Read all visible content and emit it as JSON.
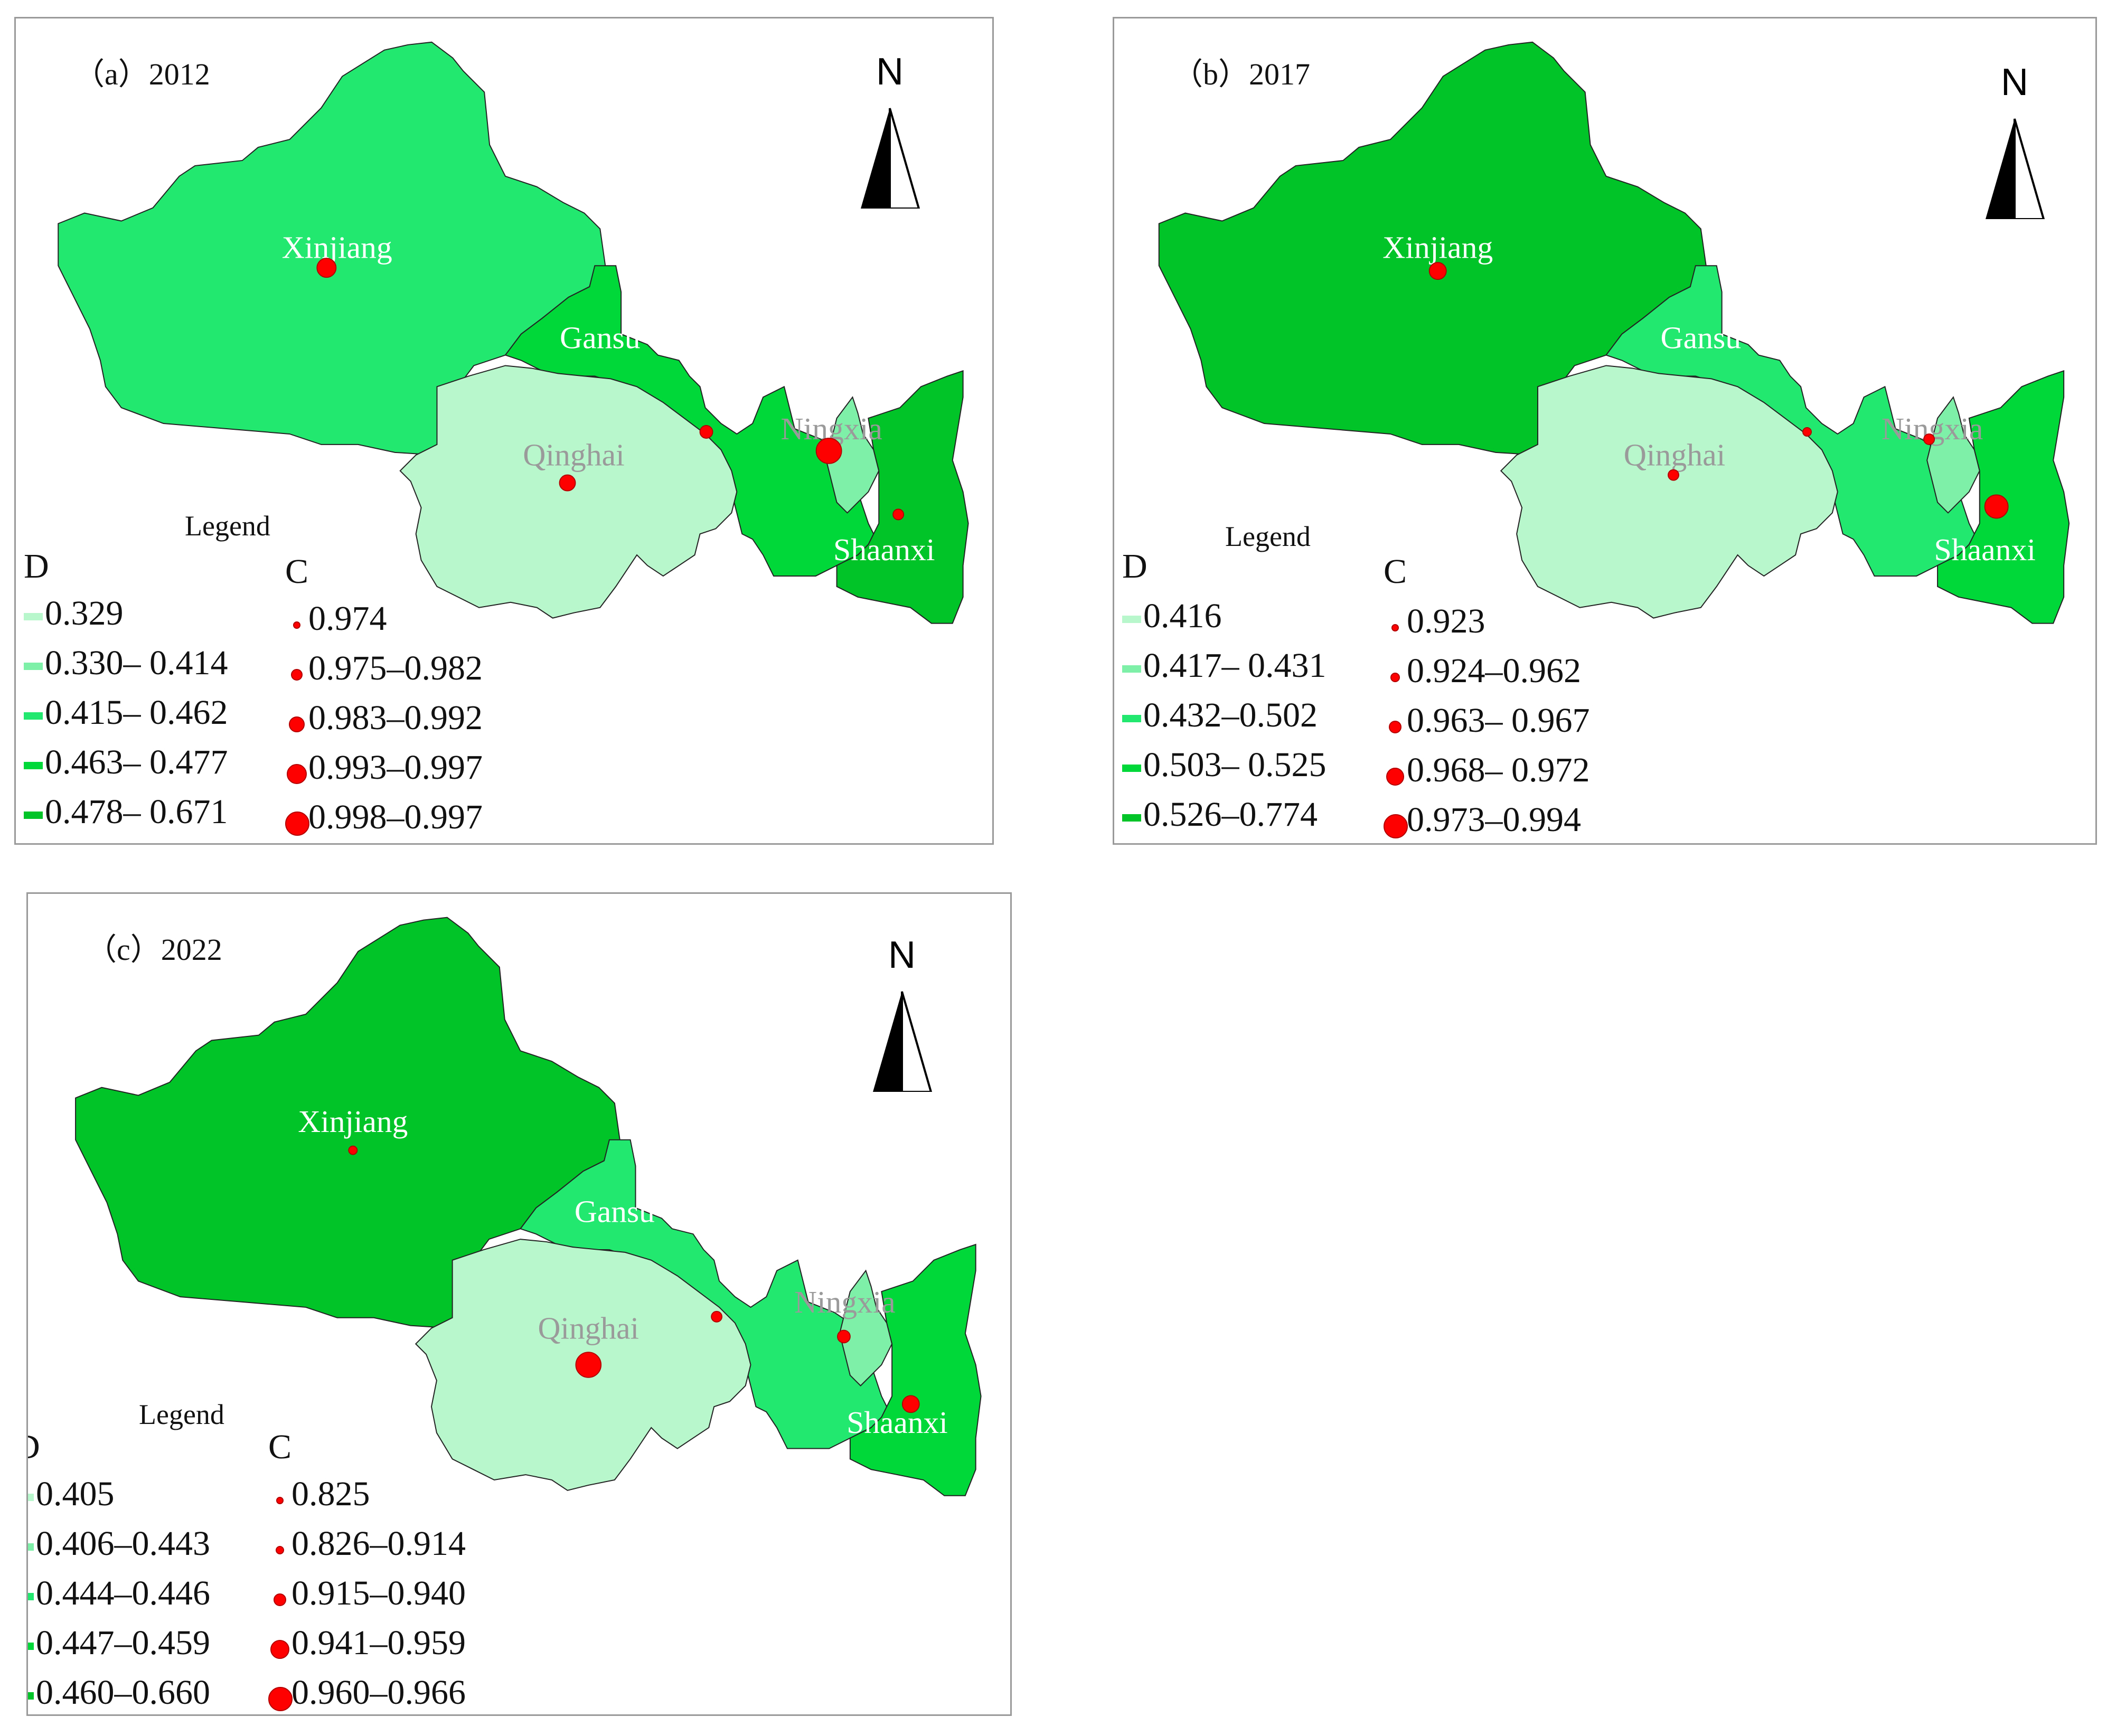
{
  "colors": {
    "class1": "#b8f7cc",
    "class2": "#7ef0a8",
    "class3": "#22e870",
    "class4": "#00d83a",
    "class5": "#00c428",
    "dot": "#ff0000",
    "label_white": "#ffffff",
    "label_grey": "#9a9a9a"
  },
  "north_label": "N",
  "panels": [
    {
      "title": "（a）2012",
      "regions": {
        "xinjiang": "Xinjiang",
        "gansu": "Gansu",
        "qinghai": "Qinghai",
        "ningxia": "Ningxia",
        "shaanxi": "Shaanxi"
      },
      "region_classes": {
        "xinjiang": 3,
        "gansu": 4,
        "qinghai": 1,
        "ningxia": 2,
        "shaanxi": 5
      },
      "legend": {
        "title": "Legend",
        "d_header": "D",
        "c_header": "C",
        "d_classes": [
          "0.329",
          "0.330– 0.414",
          "0.415– 0.462",
          "0.463– 0.477",
          "0.478– 0.671"
        ],
        "c_classes": [
          "0.974",
          "0.975–0.982",
          "0.983–0.992",
          "0.993–0.997",
          "0.998–0.997"
        ]
      }
    },
    {
      "title": "（b）2017",
      "regions": {
        "xinjiang": "Xinjiang",
        "gansu": "Gansu",
        "qinghai": "Qinghai",
        "ningxia": "Ningxia",
        "shaanxi": "Shaanxi"
      },
      "region_classes": {
        "xinjiang": 5,
        "gansu": 3,
        "qinghai": 1,
        "ningxia": 2,
        "shaanxi": 4
      },
      "legend": {
        "title": "Legend",
        "d_header": "D",
        "c_header": "C",
        "d_classes": [
          "0.416",
          "0.417– 0.431",
          "0.432–0.502",
          "0.503– 0.525",
          "0.526–0.774"
        ],
        "c_classes": [
          "0.923",
          "0.924–0.962",
          "0.963– 0.967",
          "0.968– 0.972",
          "0.973–0.994"
        ]
      }
    },
    {
      "title": "（c）2022",
      "regions": {
        "xinjiang": "Xinjiang",
        "gansu": "Gansu",
        "qinghai": "Qinghai",
        "ningxia": "Ningxia",
        "shaanxi": "Shaanxi"
      },
      "region_classes": {
        "xinjiang": 5,
        "gansu": 3,
        "qinghai": 1,
        "ningxia": 2,
        "shaanxi": 4
      },
      "legend": {
        "title": "Legend",
        "d_header": "D",
        "c_header": "C",
        "d_classes": [
          "0.405",
          "0.406–0.443",
          "0.444–0.446",
          "0.447–0.459",
          "0.460–0.660"
        ],
        "c_classes": [
          "0.825",
          "0.826–0.914",
          "0.915–0.940",
          "0.941–0.959",
          "0.960–0.966"
        ]
      }
    }
  ]
}
